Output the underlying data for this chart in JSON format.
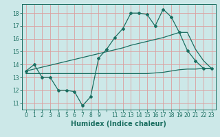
{
  "title": "",
  "xlabel": "Humidex (Indice chaleur)",
  "ylabel": "",
  "bg_color": "#cce8e8",
  "grid_color": "#dba0a0",
  "line_color": "#1a6e60",
  "line1_x": [
    0,
    1,
    2,
    3,
    4,
    5,
    6,
    7,
    8,
    9,
    10,
    11,
    12,
    13,
    14,
    15,
    16,
    17,
    18,
    19,
    20,
    21,
    22,
    23
  ],
  "line1_y": [
    13.5,
    14.0,
    13.0,
    13.0,
    12.0,
    12.0,
    11.9,
    10.8,
    11.5,
    14.5,
    15.2,
    16.1,
    16.8,
    18.0,
    18.0,
    17.9,
    17.0,
    18.3,
    17.7,
    16.5,
    15.1,
    14.3,
    13.7,
    13.7
  ],
  "line2_x": [
    0,
    1,
    2,
    3,
    4,
    5,
    6,
    7,
    8,
    9,
    10,
    11,
    12,
    13,
    14,
    15,
    16,
    17,
    18,
    19,
    20,
    21,
    22,
    23
  ],
  "line2_y": [
    13.5,
    13.65,
    13.8,
    13.95,
    14.1,
    14.25,
    14.4,
    14.55,
    14.7,
    14.85,
    15.0,
    15.15,
    15.3,
    15.5,
    15.65,
    15.8,
    15.95,
    16.1,
    16.3,
    16.5,
    16.5,
    15.2,
    14.3,
    13.7
  ],
  "line3_x": [
    0,
    1,
    2,
    3,
    4,
    5,
    6,
    7,
    8,
    9,
    10,
    11,
    12,
    13,
    14,
    15,
    16,
    17,
    18,
    19,
    20,
    21,
    22,
    23
  ],
  "line3_y": [
    13.3,
    13.3,
    13.3,
    13.3,
    13.3,
    13.3,
    13.3,
    13.3,
    13.3,
    13.3,
    13.3,
    13.3,
    13.3,
    13.3,
    13.3,
    13.3,
    13.35,
    13.4,
    13.5,
    13.6,
    13.65,
    13.65,
    13.7,
    13.7
  ],
  "xlim": [
    -0.5,
    23.5
  ],
  "ylim": [
    10.5,
    18.7
  ],
  "yticks": [
    11,
    12,
    13,
    14,
    15,
    16,
    17,
    18
  ],
  "tick_fontsize": 5.5,
  "xlabel_fontsize": 7.0
}
